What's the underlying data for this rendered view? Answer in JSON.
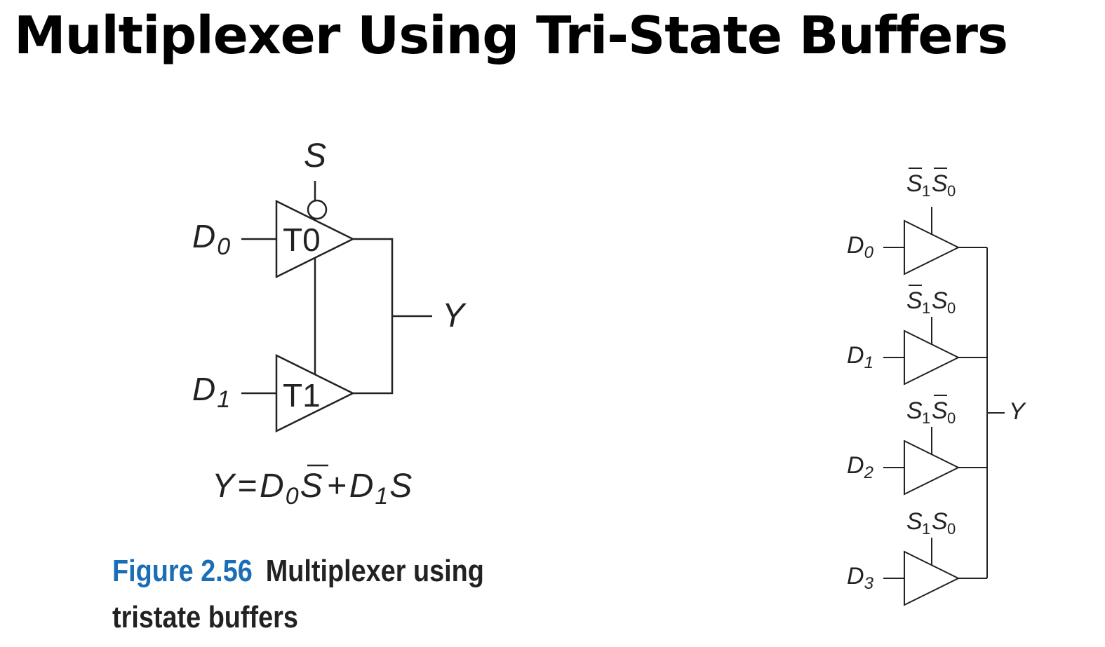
{
  "title": "Multiplexer Using Tri-State Buffers",
  "left_circuit": {
    "select": "S",
    "inputs": [
      {
        "name": "D",
        "sub": "0"
      },
      {
        "name": "D",
        "sub": "1"
      }
    ],
    "buffers": [
      "T0",
      "T1"
    ],
    "output": "Y",
    "equation": {
      "lhs": "Y",
      "eq": "=",
      "t1_var": "D",
      "t1_sub": "0",
      "t1_sel": "S",
      "plus": "+",
      "t2_var": "D",
      "t2_sub": "1",
      "t2_sel": "S"
    }
  },
  "right_circuit": {
    "inputs": [
      {
        "name": "D",
        "sub": "0"
      },
      {
        "name": "D",
        "sub": "1"
      },
      {
        "name": "D",
        "sub": "2"
      },
      {
        "name": "D",
        "sub": "3"
      }
    ],
    "enables": [
      {
        "a": "S",
        "a_sub": "1",
        "a_bar": true,
        "b": "S",
        "b_sub": "0",
        "b_bar": true
      },
      {
        "a": "S",
        "a_sub": "1",
        "a_bar": true,
        "b": "S",
        "b_sub": "0",
        "b_bar": false
      },
      {
        "a": "S",
        "a_sub": "1",
        "a_bar": false,
        "b": "S",
        "b_sub": "0",
        "b_bar": true
      },
      {
        "a": "S",
        "a_sub": "1",
        "a_bar": false,
        "b": "S",
        "b_sub": "0",
        "b_bar": false
      }
    ],
    "output": "Y"
  },
  "caption": {
    "figure": "Figure 2.56",
    "line1": "Multiplexer using",
    "line2": "tristate buffers"
  }
}
